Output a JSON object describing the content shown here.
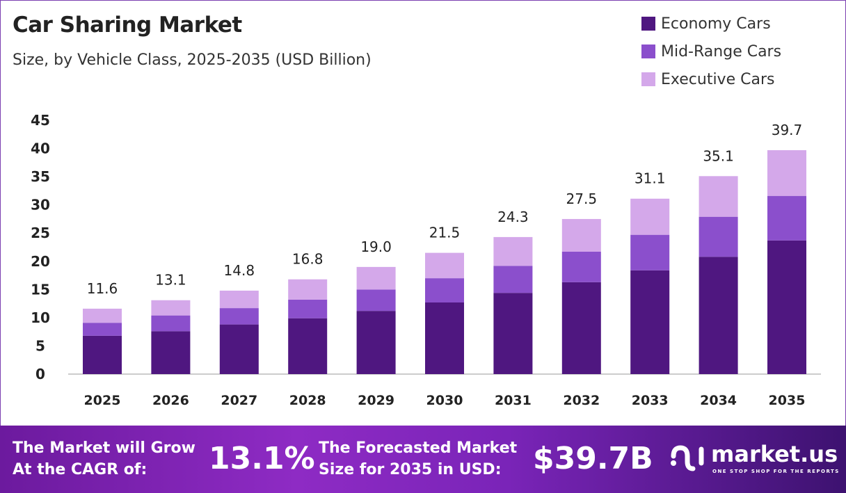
{
  "chart_data": {
    "type": "bar",
    "stacked": true,
    "title": "Car Sharing Market",
    "subtitle": "Size, by Vehicle Class, 2025-2035 (USD Billion)",
    "categories": [
      "2025",
      "2026",
      "2027",
      "2028",
      "2029",
      "2030",
      "2031",
      "2032",
      "2033",
      "2034",
      "2035"
    ],
    "series": [
      {
        "name": "Economy Cars",
        "color": "#4f1780",
        "values": [
          6.8,
          7.6,
          8.8,
          9.9,
          11.2,
          12.7,
          14.4,
          16.3,
          18.4,
          20.8,
          23.7
        ]
      },
      {
        "name": "Mid-Range Cars",
        "color": "#8b4fcc",
        "values": [
          2.3,
          2.8,
          2.9,
          3.3,
          3.8,
          4.3,
          4.8,
          5.4,
          6.3,
          7.1,
          7.9
        ]
      },
      {
        "name": "Executive Cars",
        "color": "#d4a8ea",
        "values": [
          2.5,
          2.7,
          3.1,
          3.6,
          4.0,
          4.5,
          5.1,
          5.8,
          6.4,
          7.2,
          8.1
        ]
      }
    ],
    "totals": [
      "11.6",
      "13.1",
      "14.8",
      "16.8",
      "19.0",
      "21.5",
      "24.3",
      "27.5",
      "31.1",
      "35.1",
      "39.7"
    ],
    "yticks": [
      "0",
      "5",
      "10",
      "15",
      "20",
      "25",
      "30",
      "35",
      "40",
      "45"
    ],
    "ylim": [
      0,
      45
    ],
    "grid": false,
    "legend_position": "top-right"
  },
  "footer": {
    "cagr_label_1": "The Market will Grow",
    "cagr_label_2": "At the CAGR of:",
    "cagr_value": "13.1%",
    "forecast_label_1": "The Forecasted Market",
    "forecast_label_2": "Size for 2035 in USD:",
    "forecast_value": "$39.7B",
    "logo_text": "market.us",
    "logo_tagline": "ONE STOP SHOP FOR THE REPORTS"
  }
}
